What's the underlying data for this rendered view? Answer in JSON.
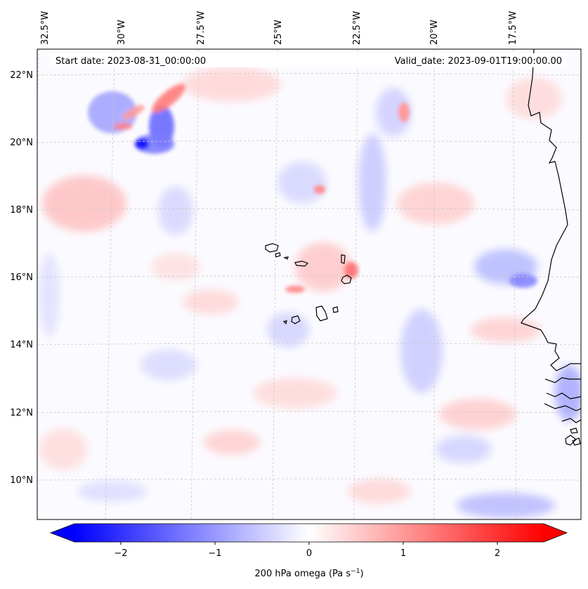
{
  "map": {
    "start_label": "Start date: 2023-08-31_00:00:00",
    "valid_label": "Valid_date: 2023-09-01T19:00:00.00",
    "lon_labels": [
      "32.5°W",
      "30°W",
      "27.5°W",
      "25°W",
      "22.5°W",
      "20°W",
      "17.5°W"
    ],
    "lat_labels": [
      "22°N",
      "20°N",
      "18°N",
      "16°N",
      "14°N",
      "12°N",
      "10°N"
    ],
    "field_colors": {
      "negative": "#0000ff",
      "neutral": "#ffffff",
      "positive": "#ff0000"
    },
    "coastline_color": "#000000",
    "gridline_style": "dashed light gray"
  },
  "colorbar": {
    "label": "200 hPa omega (Pa s",
    "label_exponent": "−1",
    "label_close": ")",
    "ticks": [
      "−2",
      "−1",
      "0",
      "1",
      "2"
    ],
    "range": [
      -2.75,
      2.75
    ],
    "extend": "both"
  }
}
